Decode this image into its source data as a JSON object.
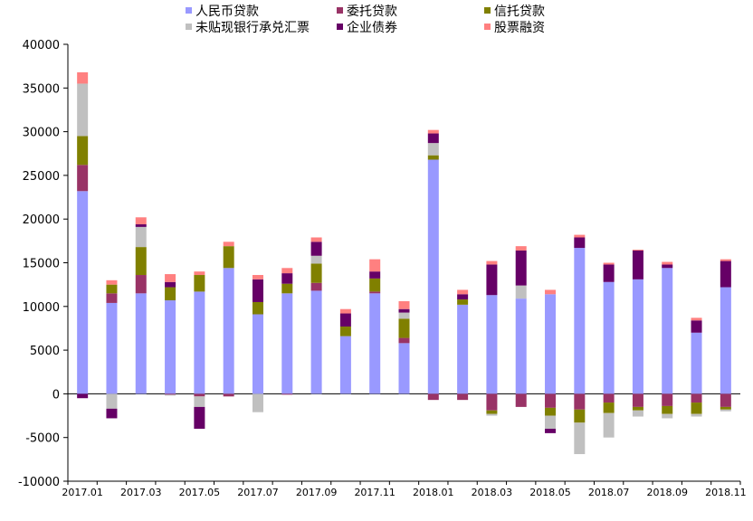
{
  "chart_data": {
    "type": "bar",
    "stacked": true,
    "title": "",
    "xlabel": "",
    "ylabel": "",
    "ylim": [
      -10000,
      40000
    ],
    "yticks": [
      -10000,
      -5000,
      0,
      5000,
      10000,
      15000,
      20000,
      25000,
      30000,
      35000,
      40000
    ],
    "grid": false,
    "legend_position": "top",
    "categories": [
      "2017.01",
      "2017.02",
      "2017.03",
      "2017.04",
      "2017.05",
      "2017.06",
      "2017.07",
      "2017.08",
      "2017.09",
      "2017.10",
      "2017.11",
      "2017.12",
      "2018.01",
      "2018.02",
      "2018.03",
      "2018.04",
      "2018.05",
      "2018.06",
      "2018.07",
      "2018.08",
      "2018.09",
      "2018.10",
      "2018.11"
    ],
    "xtick_labels": [
      "2017.01",
      "2017.03",
      "2017.05",
      "2017.07",
      "2017.09",
      "2017.11",
      "2018.01",
      "2018.03",
      "2018.05",
      "2018.07",
      "2018.09",
      "2018.11"
    ],
    "series": [
      {
        "name": "人民币贷款",
        "color": "#9999FF",
        "values": [
          23200,
          10400,
          11500,
          10700,
          11700,
          14400,
          9100,
          11500,
          11800,
          6600,
          11500,
          5800,
          26800,
          10200,
          11300,
          10900,
          11400,
          16700,
          12800,
          13100,
          14400,
          7000,
          12200
        ]
      },
      {
        "name": "委托贷款",
        "color": "#993366",
        "values": [
          3000,
          1100,
          2100,
          -100,
          -300,
          -300,
          0,
          -100,
          900,
          0,
          200,
          600,
          -700,
          -700,
          -1900,
          -1500,
          -1600,
          -1800,
          -1000,
          -1500,
          -1400,
          -1000,
          -1500
        ]
      },
      {
        "name": "信托贷款",
        "color": "#808000",
        "values": [
          3300,
          1000,
          3200,
          1500,
          1900,
          2500,
          1400,
          1100,
          2200,
          1100,
          1500,
          2200,
          500,
          600,
          -400,
          0,
          -900,
          -1500,
          -1200,
          -400,
          -900,
          -1300,
          -300
        ]
      },
      {
        "name": "未贴现银行承兑汇票",
        "color": "#C0C0C0",
        "values": [
          6000,
          -1700,
          2300,
          -100,
          -1200,
          0,
          -2100,
          0,
          900,
          0,
          0,
          700,
          1400,
          0,
          -200,
          1500,
          -1500,
          -3600,
          -2800,
          -700,
          -500,
          -300,
          -200
        ]
      },
      {
        "name": "企业债券",
        "color": "#660066",
        "values": [
          -500,
          -1100,
          300,
          600,
          -2500,
          0,
          2600,
          1200,
          1600,
          1500,
          800,
          400,
          1100,
          600,
          3500,
          4000,
          -500,
          1200,
          2000,
          3300,
          400,
          1400,
          3000
        ]
      },
      {
        "name": "股票融资",
        "color": "#FF8080",
        "values": [
          1300,
          500,
          800,
          900,
          400,
          500,
          500,
          600,
          500,
          500,
          1400,
          900,
          400,
          500,
          400,
          500,
          500,
          300,
          200,
          100,
          300,
          300,
          200
        ]
      }
    ]
  }
}
